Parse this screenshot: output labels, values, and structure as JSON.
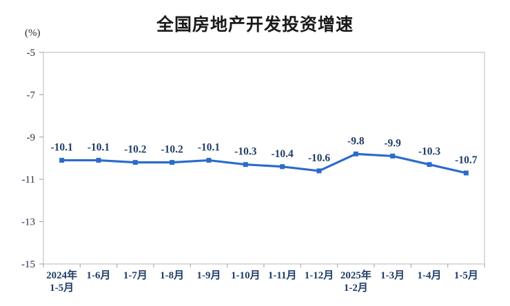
{
  "chart_data": {
    "type": "line",
    "title": "全国房地产开发投资增速",
    "ylabel": "(%)",
    "series_name": "全国房地产开发投资增速",
    "categories": [
      "2024年\n1-5月",
      "1-6月",
      "1-7月",
      "1-8月",
      "1-9月",
      "1-10月",
      "1-11月",
      "1-12月",
      "2025年\n1-2月",
      "1-3月",
      "1-4月",
      "1-5月"
    ],
    "values": [
      -10.1,
      -10.1,
      -10.2,
      -10.2,
      -10.1,
      -10.3,
      -10.4,
      -10.6,
      -9.8,
      -9.9,
      -10.3,
      -10.7
    ],
    "data_labels": [
      "-10.1",
      "-10.1",
      "-10.2",
      "-10.2",
      "-10.1",
      "-10.3",
      "-10.4",
      "-10.6",
      "-9.8",
      "-9.9",
      "-10.3",
      "-10.7"
    ],
    "ylim": [
      -15,
      -5
    ],
    "yticks": [
      -5,
      -7,
      -9,
      -11,
      -13,
      -15
    ],
    "grid": false,
    "legend": "none",
    "line_color": "#2b6bcb",
    "marker": "square",
    "label_color": "#203d66",
    "frame_color": "#c9c9c9",
    "tick_color": "#adadad"
  }
}
